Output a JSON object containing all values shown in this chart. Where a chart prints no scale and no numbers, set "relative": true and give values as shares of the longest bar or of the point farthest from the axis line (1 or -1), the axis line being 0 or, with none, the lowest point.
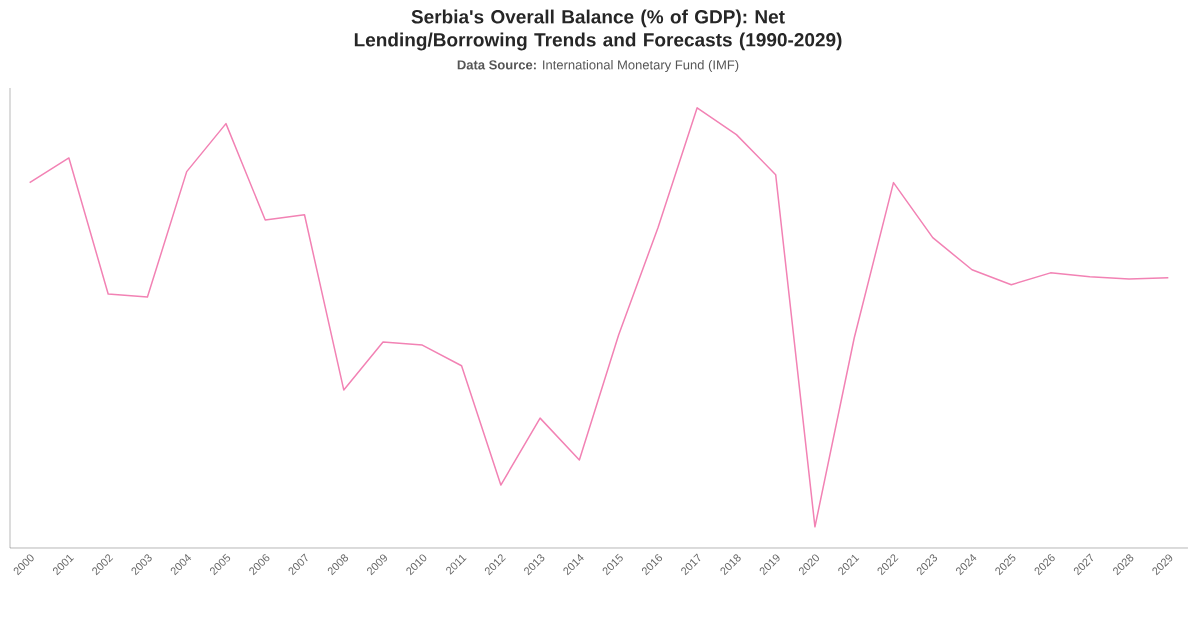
{
  "chart_data": {
    "type": "line",
    "title": "Serbia's Overall Balance (% of GDP): Net Lending/Borrowing Trends and Forecasts (1990-2029)",
    "annotations": [
      "**Data Source:** International Monetary Fund (IMF)"
    ],
    "categories": [
      "2000",
      "2001",
      "2002",
      "2003",
      "2004",
      "2005",
      "2006",
      "2007",
      "2008",
      "2009",
      "2010",
      "2011",
      "2012",
      "2013",
      "2014",
      "2015",
      "2016",
      "2017",
      "2018",
      "2019",
      "2020",
      "2021",
      "2022",
      "2023",
      "2024",
      "2025",
      "2026",
      "2027",
      "2028",
      "2029"
    ],
    "relative": true,
    "series": [
      {
        "color": "#f282b4",
        "values": [
          0.83,
          0.886,
          0.577,
          0.57,
          0.855,
          0.964,
          0.745,
          0.757,
          0.359,
          0.468,
          0.461,
          0.414,
          0.143,
          0.295,
          0.2,
          0.484,
          0.727,
          1,
          0.939,
          0.848,
          0.048,
          0.477,
          0.83,
          0.705,
          0.632,
          0.598,
          0.625,
          0.616,
          0.611,
          0.614
        ]
      }
    ],
    "grid": false,
    "marker": "none",
    "line_style": "solid"
  }
}
